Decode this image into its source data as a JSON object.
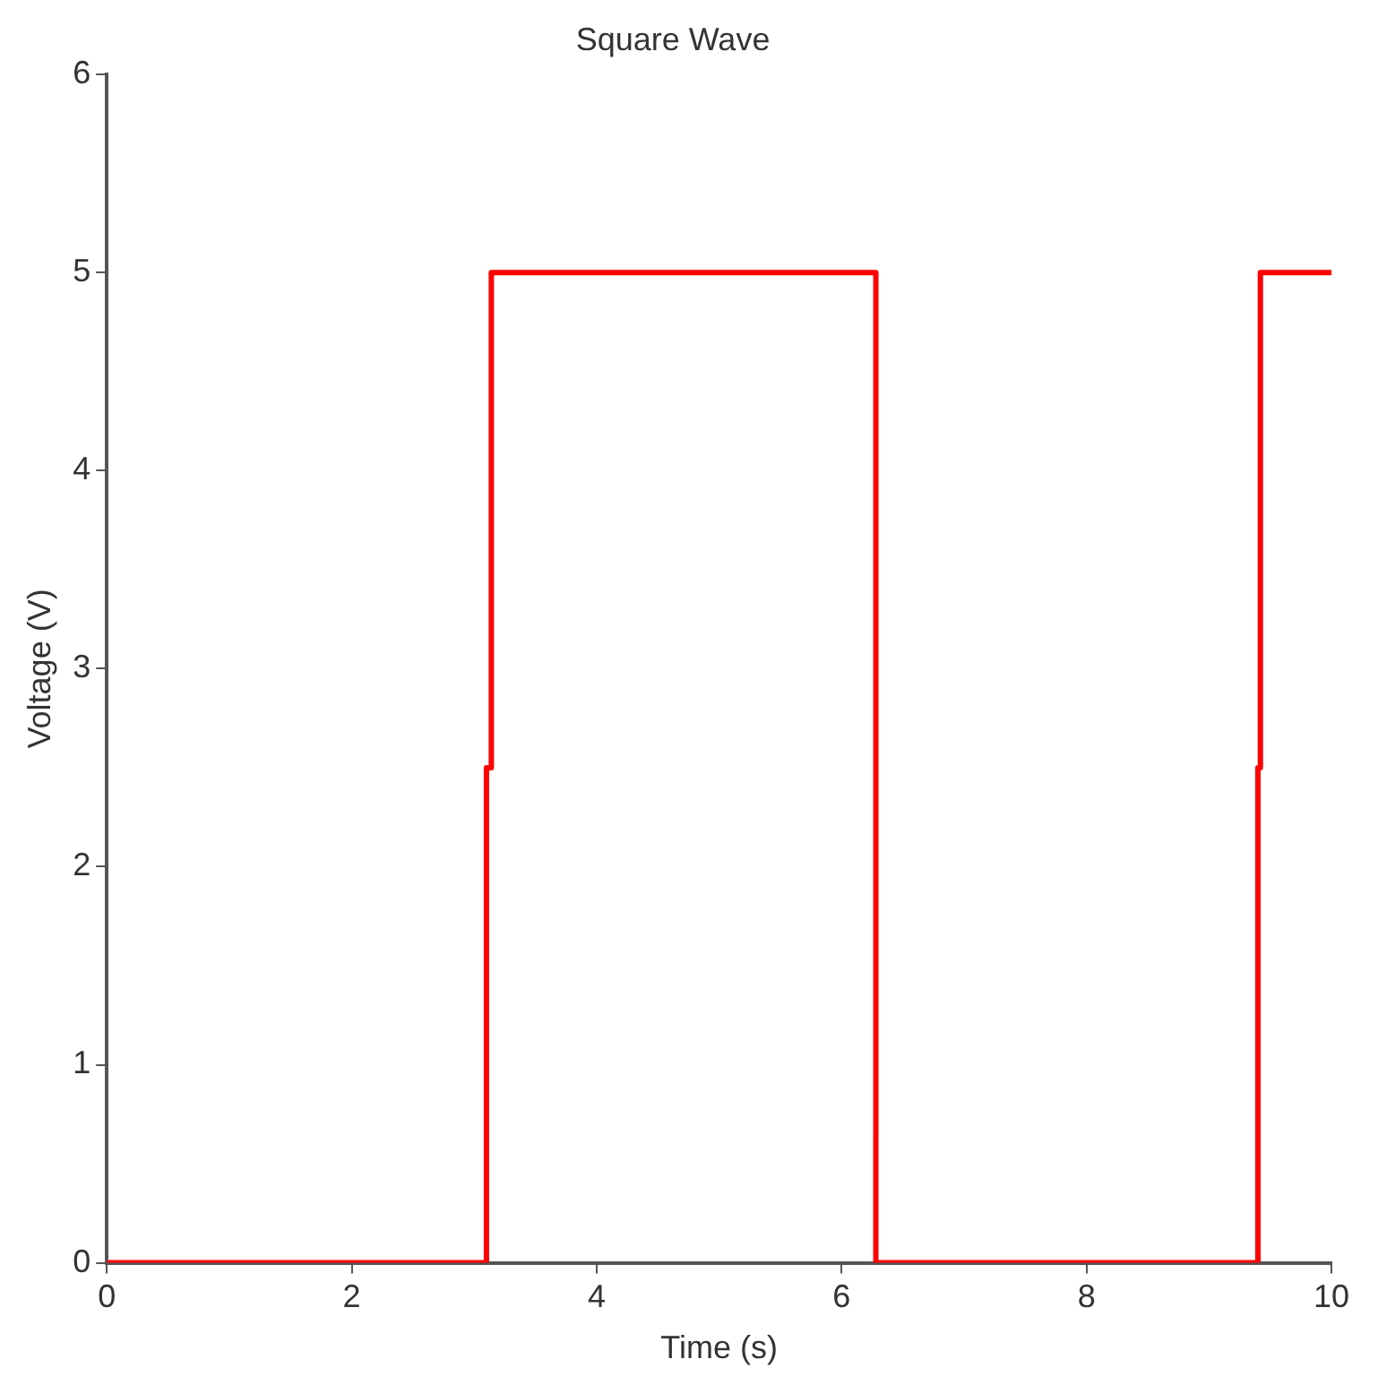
{
  "chart_data": {
    "type": "line",
    "title": "Square Wave",
    "xlabel": "Time (s)",
    "ylabel": "Voltage (V)",
    "series": [
      {
        "color": "#ff0000",
        "x": [
          0,
          3.1,
          3.1,
          3.14,
          3.14,
          6.28,
          6.28,
          9.4,
          9.4,
          9.42,
          9.42,
          10
        ],
        "values": [
          0,
          0,
          2.5,
          2.5,
          5,
          5,
          0,
          0,
          2.5,
          2.5,
          5,
          5
        ]
      }
    ],
    "xlim": [
      0,
      10
    ],
    "xticks": [
      0,
      2,
      4,
      6,
      8,
      10
    ],
    "ylim": [
      0,
      6
    ],
    "yticks": [
      0,
      1,
      2,
      3,
      4,
      5,
      6
    ],
    "grid": false,
    "legend": false,
    "marker": "none",
    "line_style": "solid"
  }
}
